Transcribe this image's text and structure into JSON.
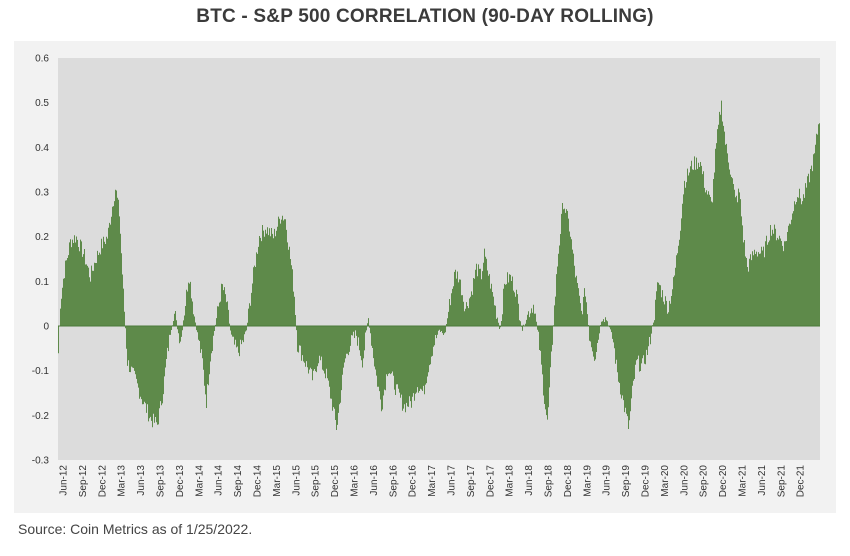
{
  "chart_data": {
    "type": "area",
    "title": "BTC - S&P 500 CORRELATION (90-DAY ROLLING)",
    "xlabel": "",
    "ylabel": "",
    "ylim": [
      -0.3,
      0.6
    ],
    "yticks": [
      0.6,
      0.5,
      0.4,
      0.3,
      0.2,
      0.1,
      0,
      -0.1,
      -0.2,
      -0.3
    ],
    "ytick_labels": [
      "0.6",
      "0.5",
      "0.4",
      "0.3",
      "0.2",
      "0.1",
      "0",
      "-0.1",
      "-0.2",
      "-0.3"
    ],
    "xtick_labels": [
      "Jun-12",
      "Sep-12",
      "Dec-12",
      "Mar-13",
      "Jun-13",
      "Sep-13",
      "Dec-13",
      "Mar-14",
      "Jun-14",
      "Sep-14",
      "Dec-14",
      "Mar-15",
      "Jun-15",
      "Sep-15",
      "Dec-15",
      "Mar-16",
      "Jun-16",
      "Sep-16",
      "Dec-16",
      "Mar-17",
      "Jun-17",
      "Sep-17",
      "Dec-17",
      "Mar-18",
      "Jun-18",
      "Sep-18",
      "Dec-18",
      "Mar-19",
      "Jun-19",
      "Sep-19",
      "Dec-19",
      "Mar-20",
      "Jun-20",
      "Sep-20",
      "Dec-20",
      "Mar-21",
      "Jun-21",
      "Sep-21",
      "Dec-21"
    ],
    "x_start": 2012.42,
    "x_end": 2022.07,
    "series": [
      {
        "name": "BTC - S&P 500 90-day rolling correlation",
        "x": [
          2012.42,
          2012.45,
          2012.5,
          2012.58,
          2012.65,
          2012.75,
          2012.83,
          2012.9,
          2012.97,
          2013.05,
          2013.12,
          2013.15,
          2013.2,
          2013.25,
          2013.3,
          2013.4,
          2013.5,
          2013.6,
          2013.68,
          2013.75,
          2013.8,
          2013.85,
          2013.9,
          2013.95,
          2013.98,
          2014.02,
          2014.08,
          2014.15,
          2014.25,
          2014.3,
          2014.35,
          2014.42,
          2014.5,
          2014.55,
          2014.62,
          2014.7,
          2014.8,
          2014.9,
          2014.97,
          2015.05,
          2015.15,
          2015.25,
          2015.3,
          2015.38,
          2015.42,
          2015.45,
          2015.55,
          2015.65,
          2015.72,
          2015.82,
          2015.9,
          2015.95,
          2016.05,
          2016.1,
          2016.15,
          2016.2,
          2016.28,
          2016.35,
          2016.45,
          2016.52,
          2016.6,
          2016.7,
          2016.8,
          2016.9,
          2016.97,
          2017.05,
          2017.1,
          2017.18,
          2017.25,
          2017.32,
          2017.38,
          2017.45,
          2017.5,
          2017.58,
          2017.65,
          2017.72,
          2017.78,
          2017.82,
          2017.88,
          2017.95,
          2018.02,
          2018.08,
          2018.15,
          2018.22,
          2018.3,
          2018.38,
          2018.45,
          2018.52,
          2018.58,
          2018.62,
          2018.66,
          2018.7,
          2018.75,
          2018.82,
          2018.9,
          2018.97,
          2019.05,
          2019.1,
          2019.15,
          2019.22,
          2019.28,
          2019.32,
          2019.38,
          2019.45,
          2019.5,
          2019.58,
          2019.65,
          2019.7,
          2019.75,
          2019.82,
          2019.9,
          2019.97,
          2020.02,
          2020.08,
          2020.15,
          2020.22,
          2020.3,
          2020.35,
          2020.45,
          2020.55,
          2020.62,
          2020.7,
          2020.75,
          2020.82,
          2020.88,
          2020.95,
          2021.0,
          2021.05,
          2021.1,
          2021.15,
          2021.25,
          2021.35,
          2021.45,
          2021.55,
          2021.62,
          2021.7,
          2021.78,
          2021.85,
          2021.93,
          2022.0,
          2022.05,
          2022.07
        ],
        "values": [
          -0.09,
          0.05,
          0.12,
          0.19,
          0.2,
          0.16,
          0.11,
          0.15,
          0.18,
          0.2,
          0.28,
          0.31,
          0.25,
          0.07,
          -0.08,
          -0.12,
          -0.17,
          -0.21,
          -0.22,
          -0.15,
          -0.07,
          -0.01,
          0.03,
          -0.02,
          -0.03,
          0.03,
          0.12,
          0.02,
          -0.08,
          -0.17,
          -0.07,
          0.01,
          0.09,
          0.06,
          -0.03,
          -0.06,
          -0.02,
          0.12,
          0.2,
          0.22,
          0.2,
          0.25,
          0.24,
          0.13,
          0.06,
          -0.04,
          -0.08,
          -0.12,
          -0.07,
          -0.11,
          -0.18,
          -0.23,
          -0.08,
          -0.05,
          -0.03,
          -0.02,
          -0.08,
          0.02,
          -0.11,
          -0.18,
          -0.09,
          -0.14,
          -0.18,
          -0.17,
          -0.13,
          -0.15,
          -0.1,
          -0.04,
          -0.01,
          -0.02,
          0.05,
          0.12,
          0.11,
          0.04,
          0.07,
          0.13,
          0.11,
          0.16,
          0.11,
          0.05,
          -0.01,
          0.1,
          0.11,
          0.08,
          -0.01,
          0.03,
          0.05,
          -0.05,
          -0.16,
          -0.22,
          -0.1,
          0.02,
          0.15,
          0.28,
          0.22,
          0.12,
          0.03,
          0.08,
          -0.02,
          -0.07,
          -0.01,
          0.03,
          0.01,
          -0.03,
          -0.1,
          -0.17,
          -0.23,
          -0.14,
          -0.08,
          -0.09,
          -0.05,
          0.02,
          0.1,
          0.07,
          0.04,
          0.1,
          0.22,
          0.32,
          0.36,
          0.37,
          0.31,
          0.27,
          0.39,
          0.5,
          0.4,
          0.34,
          0.28,
          0.3,
          0.2,
          0.13,
          0.17,
          0.16,
          0.22,
          0.2,
          0.18,
          0.24,
          0.3,
          0.28,
          0.33,
          0.38,
          0.45,
          0.47
        ]
      }
    ],
    "colors": {
      "area": "#5e8a4a",
      "plot_bg": "#dcdcdc",
      "frame_bg": "#f2f2f2",
      "text": "#333333",
      "zero_line": "#4b7a3a"
    },
    "grid": false,
    "legend": "none",
    "source_note": "Source: Coin Metrics as of 1/25/2022."
  }
}
